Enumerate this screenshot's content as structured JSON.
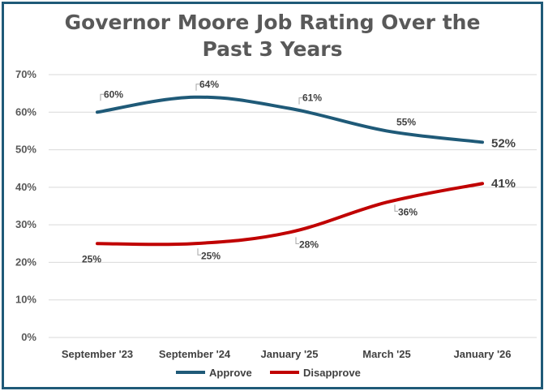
{
  "chart_data": {
    "type": "line",
    "title_line1": "Governor Moore Job Rating Over the",
    "title_line2": "Past 3 Years",
    "categories": [
      "September '23",
      "September '24",
      "January '25",
      "March '25",
      "January '26"
    ],
    "yticks": [
      "0%",
      "10%",
      "20%",
      "30%",
      "40%",
      "50%",
      "60%",
      "70%"
    ],
    "ylim": [
      0,
      70
    ],
    "series": [
      {
        "name": "Approve",
        "color": "#1f5a78",
        "values": [
          60,
          64,
          61,
          55,
          52
        ],
        "labels": [
          "60%",
          "64%",
          "61%",
          "55%",
          "52%"
        ]
      },
      {
        "name": "Disapprove",
        "color": "#c00000",
        "values": [
          25,
          25,
          28,
          36,
          41
        ],
        "labels": [
          "25%",
          "25%",
          "28%",
          "36%",
          "41%"
        ]
      }
    ],
    "legend_position": "bottom",
    "grid": true
  }
}
